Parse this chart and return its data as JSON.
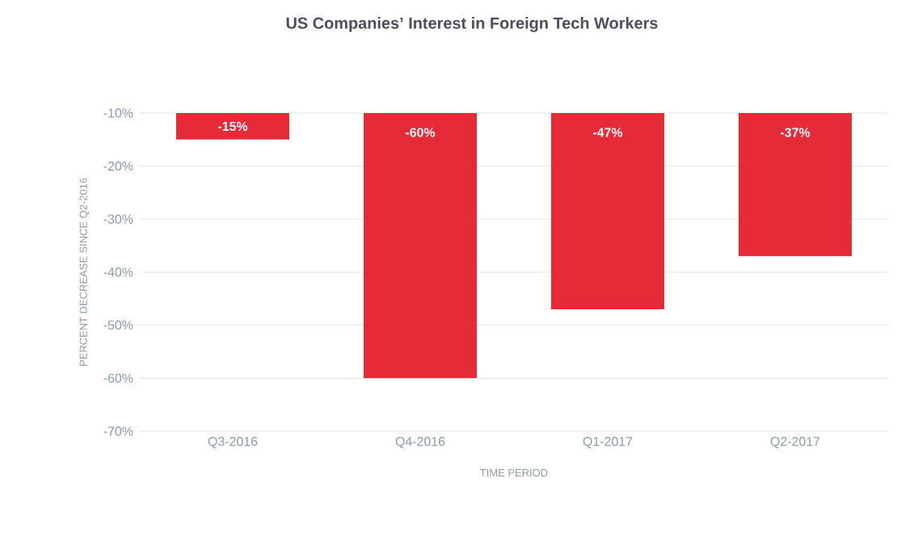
{
  "chart_data": {
    "type": "bar",
    "title": "US Companies’ Interest in Foreign Tech Workers",
    "xlabel": "TIME PERIOD",
    "ylabel": "PERCENT DECREASE SINCE Q2-2016",
    "categories": [
      "Q3-2016",
      "Q4-2016",
      "Q1-2017",
      "Q2-2017"
    ],
    "values": [
      -15,
      -60,
      -47,
      -37
    ],
    "color": "#e52b38",
    "value_labels": [
      "-15%",
      "-60%",
      "-47%",
      "-37%"
    ],
    "ylim": [
      -70,
      -10
    ],
    "yticks": [
      {
        "value": -70,
        "label": "-70%"
      },
      {
        "value": -60,
        "label": "-60%"
      },
      {
        "value": -50,
        "label": "-50%"
      },
      {
        "value": -40,
        "label": "-40%"
      },
      {
        "value": -30,
        "label": "-30%"
      },
      {
        "value": -20,
        "label": "-20%"
      },
      {
        "value": -10,
        "label": "-10%"
      }
    ],
    "grid": "y"
  }
}
